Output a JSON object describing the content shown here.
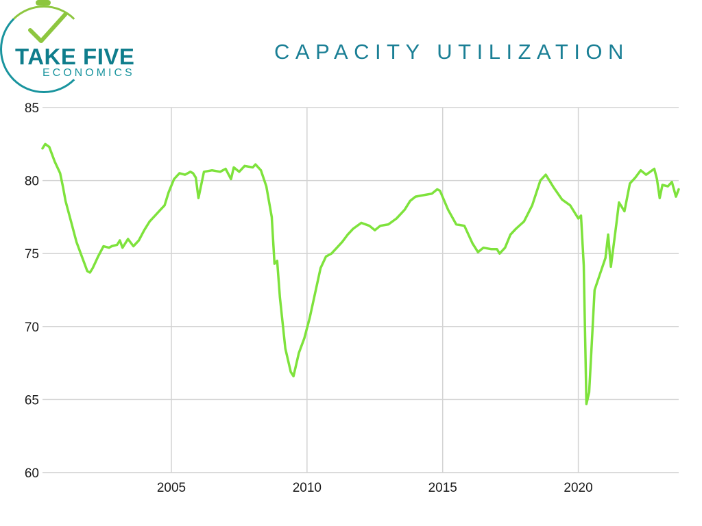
{
  "logo": {
    "main_text": "TAKE FIVE",
    "sub_text": "ECONOMICS",
    "colors": {
      "teal": "#0f7d8c",
      "green": "#8dc63f"
    }
  },
  "title": "CAPACITY UTILIZATION",
  "chart_data": {
    "type": "line",
    "title": "CAPACITY UTILIZATION",
    "xlabel": "",
    "ylabel": "",
    "xlim": [
      2000.25,
      2023.7
    ],
    "ylim": [
      60,
      85
    ],
    "yticks": [
      60,
      65,
      70,
      75,
      80,
      85
    ],
    "xticks": [
      2005,
      2010,
      2015,
      2020
    ],
    "grid": true,
    "line_color": "#7ee23c",
    "series": [
      {
        "name": "",
        "x": [
          2000.25,
          2000.35,
          2000.5,
          2000.7,
          2000.9,
          2001.0,
          2001.1,
          2001.3,
          2001.5,
          2001.7,
          2001.9,
          2002.0,
          2002.1,
          2002.2,
          2002.3,
          2002.5,
          2002.7,
          2002.8,
          2003.0,
          2003.1,
          2003.2,
          2003.3,
          2003.4,
          2003.6,
          2003.8,
          2004.0,
          2004.2,
          2004.4,
          2004.6,
          2004.75,
          2004.9,
          2005.1,
          2005.3,
          2005.5,
          2005.7,
          2005.8,
          2005.9,
          2006.0,
          2006.2,
          2006.5,
          2006.8,
          2007.0,
          2007.2,
          2007.3,
          2007.5,
          2007.7,
          2008.0,
          2008.1,
          2008.3,
          2008.5,
          2008.7,
          2008.8,
          2008.9,
          2009.0,
          2009.2,
          2009.4,
          2009.5,
          2009.7,
          2009.9,
          2010.1,
          2010.3,
          2010.5,
          2010.7,
          2010.9,
          2011.1,
          2011.3,
          2011.5,
          2011.7,
          2012.0,
          2012.3,
          2012.5,
          2012.7,
          2013.0,
          2013.3,
          2013.6,
          2013.8,
          2014.0,
          2014.3,
          2014.6,
          2014.8,
          2014.9,
          2015.2,
          2015.5,
          2015.8,
          2016.1,
          2016.3,
          2016.5,
          2016.8,
          2017.0,
          2017.1,
          2017.3,
          2017.5,
          2017.7,
          2018.0,
          2018.3,
          2018.6,
          2018.8,
          2019.1,
          2019.4,
          2019.7,
          2020.0,
          2020.1,
          2020.2,
          2020.3,
          2020.4,
          2020.5,
          2020.6,
          2020.8,
          2021.0,
          2021.1,
          2021.2,
          2021.4,
          2021.5,
          2021.7,
          2021.9,
          2022.1,
          2022.3,
          2022.5,
          2022.8,
          2022.9,
          2023.0,
          2023.1,
          2023.3,
          2023.45,
          2023.6,
          2023.7
        ],
        "values": [
          82.2,
          82.5,
          82.3,
          81.3,
          80.5,
          79.6,
          78.6,
          77.2,
          75.8,
          74.8,
          73.8,
          73.7,
          74.0,
          74.4,
          74.8,
          75.5,
          75.4,
          75.5,
          75.6,
          75.9,
          75.4,
          75.7,
          76.0,
          75.5,
          75.9,
          76.6,
          77.2,
          77.6,
          78.0,
          78.3,
          79.2,
          80.1,
          80.5,
          80.4,
          80.6,
          80.5,
          80.2,
          78.8,
          80.6,
          80.7,
          80.6,
          80.8,
          80.1,
          80.9,
          80.6,
          81.0,
          80.9,
          81.1,
          80.7,
          79.6,
          77.5,
          74.3,
          74.5,
          72.0,
          68.5,
          66.9,
          66.6,
          68.2,
          69.2,
          70.6,
          72.3,
          74.0,
          74.8,
          75.0,
          75.4,
          75.8,
          76.3,
          76.7,
          77.1,
          76.9,
          76.6,
          76.9,
          77.0,
          77.4,
          78.0,
          78.6,
          78.9,
          79.0,
          79.1,
          79.4,
          79.3,
          78.0,
          77.0,
          76.9,
          75.7,
          75.1,
          75.4,
          75.3,
          75.3,
          75.0,
          75.4,
          76.3,
          76.7,
          77.2,
          78.3,
          80.0,
          80.4,
          79.5,
          78.7,
          78.3,
          77.4,
          77.6,
          74.2,
          64.7,
          65.5,
          69.0,
          72.5,
          73.6,
          74.7,
          76.3,
          74.1,
          77.0,
          78.5,
          77.9,
          79.8,
          80.2,
          80.7,
          80.4,
          80.8,
          80.1,
          78.8,
          79.7,
          79.6,
          79.9,
          78.9,
          79.4
        ]
      }
    ]
  }
}
